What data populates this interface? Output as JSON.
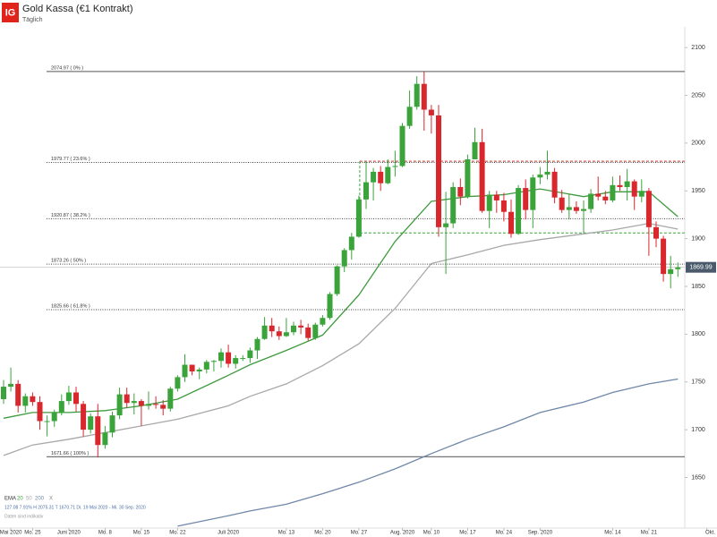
{
  "header": {
    "logo": "IG",
    "title": "Gold Kassa (€1 Kontrakt)",
    "subtitle": "Täglich"
  },
  "footer": {
    "indicator": "EMA",
    "close": "X",
    "stats": "127.08   7.91%   H 2075.31   T 1670.71   Di. 19 Mai 2020 - Mi. 30 Sep. 2020",
    "note": "Daten sind indikativ"
  },
  "chart_data": {
    "type": "candlestick",
    "up_color": "#3aa33a",
    "down_color": "#d9272e",
    "ylim": [
      1598,
      2117
    ],
    "yticks": [
      1650,
      1700,
      1750,
      1800,
      1850,
      1900,
      1950,
      2000,
      2050,
      2100
    ],
    "xticks": [
      {
        "value": "2020-05-20",
        "label": "Mai 2020"
      },
      {
        "value": "2020-05-25",
        "label": "Mo. 25"
      },
      {
        "value": "2020-06-01",
        "label": "Juni 2020"
      },
      {
        "value": "2020-06-08",
        "label": "Mo. 8"
      },
      {
        "value": "2020-06-15",
        "label": "Mo. 15"
      },
      {
        "value": "2020-06-22",
        "label": "Mo. 22"
      },
      {
        "value": "2020-07-01",
        "label": "Juli 2020"
      },
      {
        "value": "2020-07-13",
        "label": "Mo. 13"
      },
      {
        "value": "2020-07-20",
        "label": "Mo. 20"
      },
      {
        "value": "2020-07-27",
        "label": "Mo. 27"
      },
      {
        "value": "2020-08-04",
        "label": "Aug. 2020"
      },
      {
        "value": "2020-08-10",
        "label": "Mo. 10"
      },
      {
        "value": "2020-08-17",
        "label": "Mo. 17"
      },
      {
        "value": "2020-08-24",
        "label": "Mo. 24"
      },
      {
        "value": "2020-08-31",
        "label": "Sep. 2020"
      },
      {
        "value": "2020-09-14",
        "label": "Mo. 14"
      },
      {
        "value": "2020-09-21",
        "label": "Mo. 21"
      },
      {
        "value": "2020-10-01",
        "label": "Okt."
      }
    ],
    "x": [
      "2020-05-19",
      "2020-05-20",
      "2020-05-21",
      "2020-05-22",
      "2020-05-25",
      "2020-05-26",
      "2020-05-27",
      "2020-05-28",
      "2020-05-29",
      "2020-06-01",
      "2020-06-02",
      "2020-06-03",
      "2020-06-04",
      "2020-06-05",
      "2020-06-08",
      "2020-06-09",
      "2020-06-10",
      "2020-06-11",
      "2020-06-12",
      "2020-06-15",
      "2020-06-16",
      "2020-06-17",
      "2020-06-18",
      "2020-06-19",
      "2020-06-22",
      "2020-06-23",
      "2020-06-24",
      "2020-06-25",
      "2020-06-26",
      "2020-06-29",
      "2020-06-30",
      "2020-07-01",
      "2020-07-02",
      "2020-07-03",
      "2020-07-06",
      "2020-07-07",
      "2020-07-08",
      "2020-07-09",
      "2020-07-10",
      "2020-07-13",
      "2020-07-14",
      "2020-07-15",
      "2020-07-16",
      "2020-07-17",
      "2020-07-20",
      "2020-07-21",
      "2020-07-22",
      "2020-07-23",
      "2020-07-24",
      "2020-07-27",
      "2020-07-28",
      "2020-07-29",
      "2020-07-30",
      "2020-07-31",
      "2020-08-03",
      "2020-08-04",
      "2020-08-05",
      "2020-08-06",
      "2020-08-07",
      "2020-08-10",
      "2020-08-11",
      "2020-08-12",
      "2020-08-13",
      "2020-08-14",
      "2020-08-17",
      "2020-08-18",
      "2020-08-19",
      "2020-08-20",
      "2020-08-21",
      "2020-08-24",
      "2020-08-25",
      "2020-08-26",
      "2020-08-27",
      "2020-08-28",
      "2020-08-31",
      "2020-09-01",
      "2020-09-02",
      "2020-09-03",
      "2020-09-04",
      "2020-09-07",
      "2020-09-08",
      "2020-09-09",
      "2020-09-10",
      "2020-09-11",
      "2020-09-14",
      "2020-09-15",
      "2020-09-16",
      "2020-09-17",
      "2020-09-18",
      "2020-09-21",
      "2020-09-22",
      "2020-09-23",
      "2020-09-24",
      "2020-09-25"
    ],
    "open": [
      1732,
      1745,
      1748,
      1725,
      1735,
      1729,
      1709,
      1709,
      1718,
      1730,
      1739,
      1727,
      1700,
      1714,
      1684,
      1697,
      1715,
      1737,
      1728,
      1730,
      1725,
      1727,
      1726,
      1722,
      1743,
      1755,
      1768,
      1761,
      1763,
      1771,
      1772,
      1781,
      1769,
      1775,
      1775,
      1783,
      1795,
      1809,
      1803,
      1798,
      1802,
      1809,
      1807,
      1796,
      1810,
      1817,
      1842,
      1871,
      1888,
      1902,
      1941,
      1959,
      1970,
      1958,
      1975,
      1976,
      2018,
      2038,
      2062,
      2035,
      2029,
      1912,
      1916,
      1954,
      1944,
      1983,
      2001,
      1929,
      1946,
      1940,
      1928,
      1905,
      1953,
      1930,
      1964,
      1967,
      1970,
      1943,
      1930,
      1933,
      1929,
      1931,
      1947,
      1944,
      1940,
      1956,
      1954,
      1960,
      1944,
      1950,
      1912,
      1900,
      1863,
      1868
    ],
    "high": [
      1752,
      1765,
      1752,
      1738,
      1739,
      1735,
      1715,
      1721,
      1737,
      1746,
      1745,
      1730,
      1717,
      1727,
      1704,
      1719,
      1744,
      1744,
      1738,
      1732,
      1740,
      1735,
      1731,
      1745,
      1757,
      1779,
      1768,
      1765,
      1773,
      1773,
      1785,
      1789,
      1778,
      1778,
      1786,
      1797,
      1818,
      1817,
      1808,
      1817,
      1813,
      1815,
      1811,
      1812,
      1820,
      1844,
      1872,
      1890,
      1906,
      1945,
      1981,
      1974,
      1976,
      1983,
      1992,
      2021,
      2055,
      2070,
      2075,
      2040,
      2040,
      1949,
      1959,
      1963,
      1988,
      2016,
      2015,
      1950,
      1950,
      1948,
      1941,
      1956,
      1962,
      1967,
      1975,
      1992,
      1974,
      1951,
      1946,
      1939,
      1940,
      1952,
      1965,
      1950,
      1965,
      1966,
      1973,
      1962,
      1962,
      1953,
      1918,
      1903,
      1882,
      1875
    ],
    "low": [
      1727,
      1740,
      1718,
      1718,
      1725,
      1700,
      1693,
      1703,
      1715,
      1726,
      1719,
      1693,
      1696,
      1671,
      1680,
      1692,
      1711,
      1723,
      1716,
      1704,
      1721,
      1722,
      1715,
      1719,
      1740,
      1750,
      1757,
      1753,
      1759,
      1761,
      1765,
      1765,
      1764,
      1772,
      1770,
      1774,
      1794,
      1797,
      1794,
      1797,
      1799,
      1800,
      1793,
      1794,
      1808,
      1815,
      1840,
      1865,
      1878,
      1901,
      1931,
      1940,
      1950,
      1957,
      1965,
      1975,
      2015,
      2035,
      2013,
      2010,
      1902,
      1863,
      1911,
      1935,
      1942,
      1983,
      1927,
      1911,
      1927,
      1918,
      1901,
      1904,
      1920,
      1911,
      1957,
      1962,
      1937,
      1927,
      1920,
      1926,
      1906,
      1927,
      1940,
      1936,
      1938,
      1950,
      1940,
      1930,
      1938,
      1882,
      1891,
      1855,
      1848,
      1860
    ],
    "close": [
      1745,
      1748,
      1725,
      1735,
      1729,
      1709,
      1709,
      1718,
      1730,
      1739,
      1727,
      1700,
      1714,
      1684,
      1697,
      1715,
      1737,
      1728,
      1730,
      1725,
      1727,
      1726,
      1722,
      1743,
      1755,
      1768,
      1761,
      1763,
      1771,
      1772,
      1781,
      1769,
      1775,
      1775,
      1783,
      1795,
      1809,
      1803,
      1798,
      1802,
      1809,
      1807,
      1796,
      1810,
      1817,
      1842,
      1871,
      1888,
      1902,
      1941,
      1959,
      1970,
      1958,
      1975,
      1976,
      2018,
      2038,
      2062,
      2035,
      2029,
      1912,
      1916,
      1954,
      1944,
      1983,
      2001,
      1929,
      1946,
      1940,
      1928,
      1905,
      1953,
      1930,
      1964,
      1967,
      1970,
      1943,
      1930,
      1933,
      1929,
      1931,
      1947,
      1944,
      1940,
      1956,
      1954,
      1960,
      1944,
      1950,
      1912,
      1900,
      1863,
      1868,
      1870
    ],
    "series": [
      {
        "name": "20",
        "color": "#3d9a3d",
        "x": [
          "2020-05-19",
          "2020-05-25",
          "2020-06-01",
          "2020-06-08",
          "2020-06-15",
          "2020-06-22",
          "2020-07-01",
          "2020-07-06",
          "2020-07-13",
          "2020-07-20",
          "2020-07-27",
          "2020-08-03",
          "2020-08-10",
          "2020-08-17",
          "2020-08-24",
          "2020-08-31",
          "2020-09-08",
          "2020-09-14",
          "2020-09-21",
          "2020-09-25"
        ],
        "values": [
          1712,
          1718,
          1718,
          1720,
          1725,
          1732,
          1757,
          1768,
          1783,
          1799,
          1841,
          1897,
          1939,
          1944,
          1946,
          1952,
          1944,
          1949,
          1949,
          1923
        ]
      },
      {
        "name": "50",
        "color": "#a8a8a8",
        "x": [
          "2020-05-19",
          "2020-05-25",
          "2020-06-01",
          "2020-06-08",
          "2020-06-15",
          "2020-06-22",
          "2020-07-01",
          "2020-07-06",
          "2020-07-13",
          "2020-07-20",
          "2020-07-27",
          "2020-08-03",
          "2020-08-10",
          "2020-08-17",
          "2020-08-24",
          "2020-08-31",
          "2020-09-08",
          "2020-09-14",
          "2020-09-21",
          "2020-09-25"
        ],
        "values": [
          1673,
          1684,
          1690,
          1697,
          1704,
          1711,
          1725,
          1735,
          1748,
          1767,
          1790,
          1827,
          1874,
          1883,
          1893,
          1899,
          1905,
          1909,
          1916,
          1910
        ]
      },
      {
        "name": "200",
        "color": "#6f87a8",
        "x": [
          "2020-06-22",
          "2020-07-01",
          "2020-07-06",
          "2020-07-13",
          "2020-07-20",
          "2020-07-27",
          "2020-08-03",
          "2020-08-10",
          "2020-08-17",
          "2020-08-24",
          "2020-08-31",
          "2020-09-08",
          "2020-09-14",
          "2020-09-21",
          "2020-09-25"
        ],
        "values": [
          1599,
          1610,
          1615,
          1622,
          1633,
          1645,
          1659,
          1675,
          1690,
          1703,
          1718,
          1729,
          1739,
          1748,
          1753
        ]
      }
    ],
    "fibonacci": [
      {
        "value": 2074.97,
        "label": "2074.97 ( 0% )",
        "solid": true
      },
      {
        "value": 1979.77,
        "label": "1979.77 ( 23.6% )"
      },
      {
        "value": 1920.87,
        "label": "1920.87 ( 38.2% )"
      },
      {
        "value": 1873.26,
        "label": "1873.26 ( 50% )"
      },
      {
        "value": 1825.66,
        "label": "1825.66 ( 61.8% )"
      },
      {
        "value": 1671.66,
        "label": "1671.66 ( 100% )",
        "solid": true
      }
    ],
    "levels": [
      {
        "value": 1981,
        "color": "#c0392b",
        "from": "2020-07-27"
      },
      {
        "value": 1906,
        "color": "#3aa33a",
        "from": "2020-07-27"
      }
    ],
    "last_price": 1869.99
  }
}
